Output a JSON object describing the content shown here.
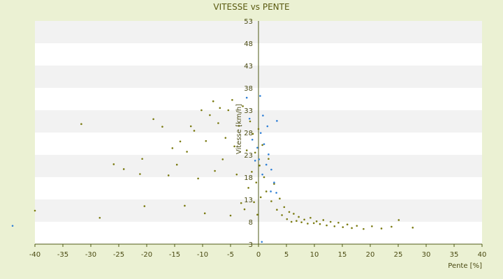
{
  "chart_data": {
    "type": "scatter",
    "title": "VITESSE vs PENTE",
    "xlabel": "Pente [%]",
    "ylabel": "Vitesse [km/h]",
    "xlim": [
      -40,
      40
    ],
    "ylim": [
      3,
      53
    ],
    "x_ticks": [
      -40,
      -35,
      -30,
      -25,
      -20,
      -15,
      -10,
      -5,
      0,
      5,
      10,
      15,
      20,
      25,
      30,
      35,
      40
    ],
    "y_ticks": [
      3,
      8,
      13,
      18,
      23,
      28,
      33,
      38,
      43,
      48,
      53
    ],
    "grid": "horizontal alternating bands",
    "colors": {
      "background": "#ebf1d3",
      "band_light": "#ffffff",
      "band_dark": "#f2f2f2",
      "axis": "#4f5a14",
      "series_main": "#7a7a10",
      "series_blue": "#2f7fd6"
    },
    "series": [
      {
        "color": "#7a7a10",
        "points": [
          [
            -31.7,
            29.9
          ],
          [
            -28.4,
            8.9
          ],
          [
            -25.9,
            20.9
          ],
          [
            -24.1,
            19.8
          ],
          [
            -21.2,
            18.7
          ],
          [
            -20.8,
            22.1
          ],
          [
            -20.4,
            11.5
          ],
          [
            -18.8,
            31.0
          ],
          [
            -17.2,
            29.3
          ],
          [
            -16.1,
            18.4
          ],
          [
            -15.4,
            24.5
          ],
          [
            -14.6,
            20.8
          ],
          [
            -14.0,
            26.0
          ],
          [
            -13.2,
            11.6
          ],
          [
            -12.8,
            23.7
          ],
          [
            -12.1,
            29.4
          ],
          [
            -11.5,
            28.4
          ],
          [
            -10.8,
            17.7
          ],
          [
            -10.2,
            33.0
          ],
          [
            -9.6,
            9.9
          ],
          [
            -9.4,
            26.1
          ],
          [
            -8.7,
            31.9
          ],
          [
            -8.1,
            35.0
          ],
          [
            -7.8,
            19.4
          ],
          [
            -7.2,
            30.1
          ],
          [
            -6.9,
            33.5
          ],
          [
            -6.4,
            22.0
          ],
          [
            -5.9,
            26.8
          ],
          [
            -5.4,
            33.0
          ],
          [
            -5.0,
            9.4
          ],
          [
            -4.7,
            35.3
          ],
          [
            -4.3,
            24.9
          ],
          [
            -3.9,
            18.6
          ],
          [
            -3.5,
            29.5
          ],
          [
            -3.1,
            12.2
          ],
          [
            -2.8,
            33.9
          ],
          [
            -2.5,
            10.8
          ],
          [
            -2.1,
            24.0
          ],
          [
            -1.8,
            15.6
          ],
          [
            -1.5,
            30.5
          ],
          [
            -1.2,
            19.2
          ],
          [
            -1.0,
            27.7
          ],
          [
            -0.8,
            12.4
          ],
          [
            -0.6,
            23.5
          ],
          [
            -0.4,
            16.8
          ],
          [
            -0.2,
            9.6
          ],
          [
            0.0,
            28.8
          ],
          [
            0.2,
            20.6
          ],
          [
            0.4,
            13.5
          ],
          [
            0.7,
            25.2
          ],
          [
            1.0,
            18.0
          ],
          [
            1.4,
            14.8
          ],
          [
            1.8,
            22.1
          ],
          [
            2.3,
            12.6
          ],
          [
            2.8,
            16.5
          ],
          [
            3.3,
            10.7
          ],
          [
            3.8,
            13.2
          ],
          [
            4.2,
            9.5
          ],
          [
            4.6,
            11.3
          ],
          [
            5.1,
            8.6
          ],
          [
            5.5,
            10.2
          ],
          [
            5.9,
            8.0
          ],
          [
            6.3,
            9.8
          ],
          [
            6.8,
            8.2
          ],
          [
            7.2,
            9.1
          ],
          [
            7.7,
            7.9
          ],
          [
            8.2,
            8.5
          ],
          [
            8.8,
            7.6
          ],
          [
            9.3,
            8.9
          ],
          [
            9.9,
            7.7
          ],
          [
            10.4,
            8.1
          ],
          [
            11.0,
            7.5
          ],
          [
            11.6,
            8.4
          ],
          [
            12.2,
            7.2
          ],
          [
            12.9,
            8.0
          ],
          [
            13.6,
            7.0
          ],
          [
            14.3,
            7.8
          ],
          [
            15.1,
            6.8
          ],
          [
            15.9,
            7.4
          ],
          [
            16.7,
            6.6
          ],
          [
            17.6,
            7.1
          ],
          [
            18.8,
            6.4
          ],
          [
            20.3,
            7.0
          ],
          [
            22.0,
            6.5
          ],
          [
            23.8,
            6.9
          ],
          [
            25.1,
            8.4
          ],
          [
            27.6,
            6.7
          ],
          [
            -40.0,
            10.5
          ]
        ]
      },
      {
        "color": "#2f7fd6",
        "points": [
          [
            -44.0,
            7.1
          ],
          [
            -2.1,
            35.8
          ],
          [
            -1.6,
            31.1
          ],
          [
            -1.1,
            26.4
          ],
          [
            -0.6,
            21.7
          ],
          [
            -0.2,
            24.6
          ],
          [
            0.1,
            22.0
          ],
          [
            0.4,
            27.9
          ],
          [
            0.7,
            18.6
          ],
          [
            1.0,
            25.4
          ],
          [
            1.4,
            20.8
          ],
          [
            1.8,
            23.1
          ],
          [
            2.3,
            19.7
          ],
          [
            2.8,
            16.8
          ],
          [
            3.2,
            14.5
          ],
          [
            0.3,
            36.2
          ],
          [
            0.8,
            31.8
          ],
          [
            1.6,
            29.4
          ],
          [
            3.3,
            30.6
          ],
          [
            0.6,
            3.5
          ],
          [
            2.2,
            14.8
          ]
        ]
      }
    ]
  }
}
